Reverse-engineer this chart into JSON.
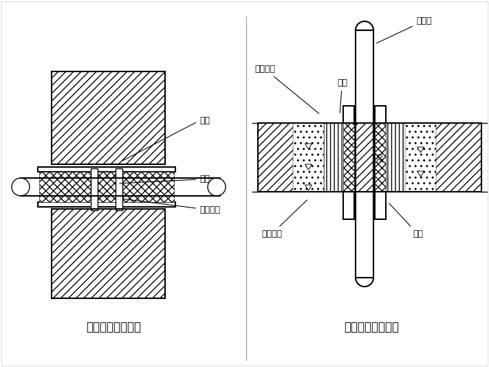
{
  "bg_color": "#ffffff",
  "line_color": "#000000",
  "title1": "防水套管穿墙做法",
  "title2": "套管穿楼板的做法",
  "label_taogguan": "套管",
  "label_liqing": "沥青",
  "label_liqingmcf": "沥青麻刀",
  "label_liqing2": "沥青",
  "label_liqingmcf2": "沥青麻刀",
  "label_meiqi": "煤气管",
  "label_shuini": "水泥砂浆",
  "label_taogguan2": "套管",
  "label_20": "20"
}
